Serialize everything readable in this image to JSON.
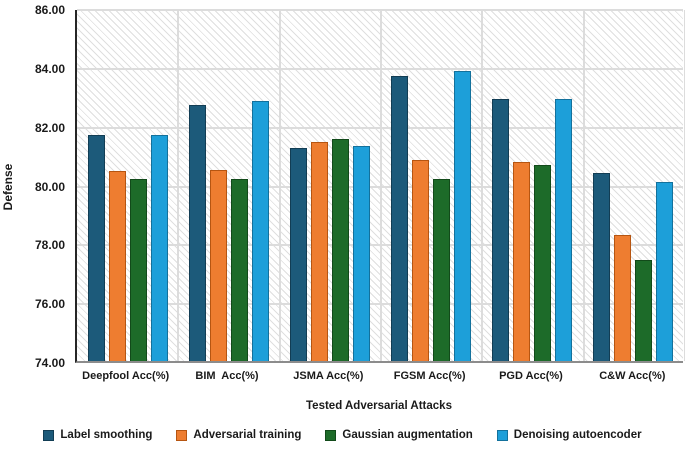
{
  "chart_data": {
    "type": "bar",
    "title": "",
    "xlabel": "Tested Adversarial Attacks",
    "ylabel": "Defense",
    "ylim": [
      74,
      86
    ],
    "ytick_step": 2,
    "ytick_labels": [
      "86.00",
      "84.00",
      "82.00",
      "80.00",
      "78.00",
      "76.00",
      "74.00"
    ],
    "grid": true,
    "plot_background": "diagonal-hatch",
    "legend_position": "bottom",
    "categories": [
      "Deepfool Acc(%)",
      "BIM  Acc(%)",
      "JSMA Acc(%)",
      "FGSM Acc(%)",
      "PGD Acc(%)",
      "C&W Acc(%)"
    ],
    "series": [
      {
        "name": "Label smoothing",
        "color": "#1c5a7a",
        "border_color": "#123d54",
        "values": [
          81.7,
          82.7,
          81.25,
          83.7,
          82.9,
          80.4
        ]
      },
      {
        "name": "Adversarial training",
        "color": "#ee7d30",
        "border_color": "#b65511",
        "values": [
          80.45,
          80.5,
          81.45,
          80.85,
          80.75,
          78.3
        ]
      },
      {
        "name": "Gaussian augmentation",
        "color": "#1d6b29",
        "border_color": "#124a1a",
        "values": [
          80.2,
          80.2,
          81.55,
          80.2,
          80.65,
          77.45
        ]
      },
      {
        "name": "Denoising autoencoder",
        "color": "#1d9fd9",
        "border_color": "#13719c",
        "values": [
          81.7,
          82.85,
          81.3,
          83.85,
          82.9,
          80.1
        ]
      }
    ]
  }
}
